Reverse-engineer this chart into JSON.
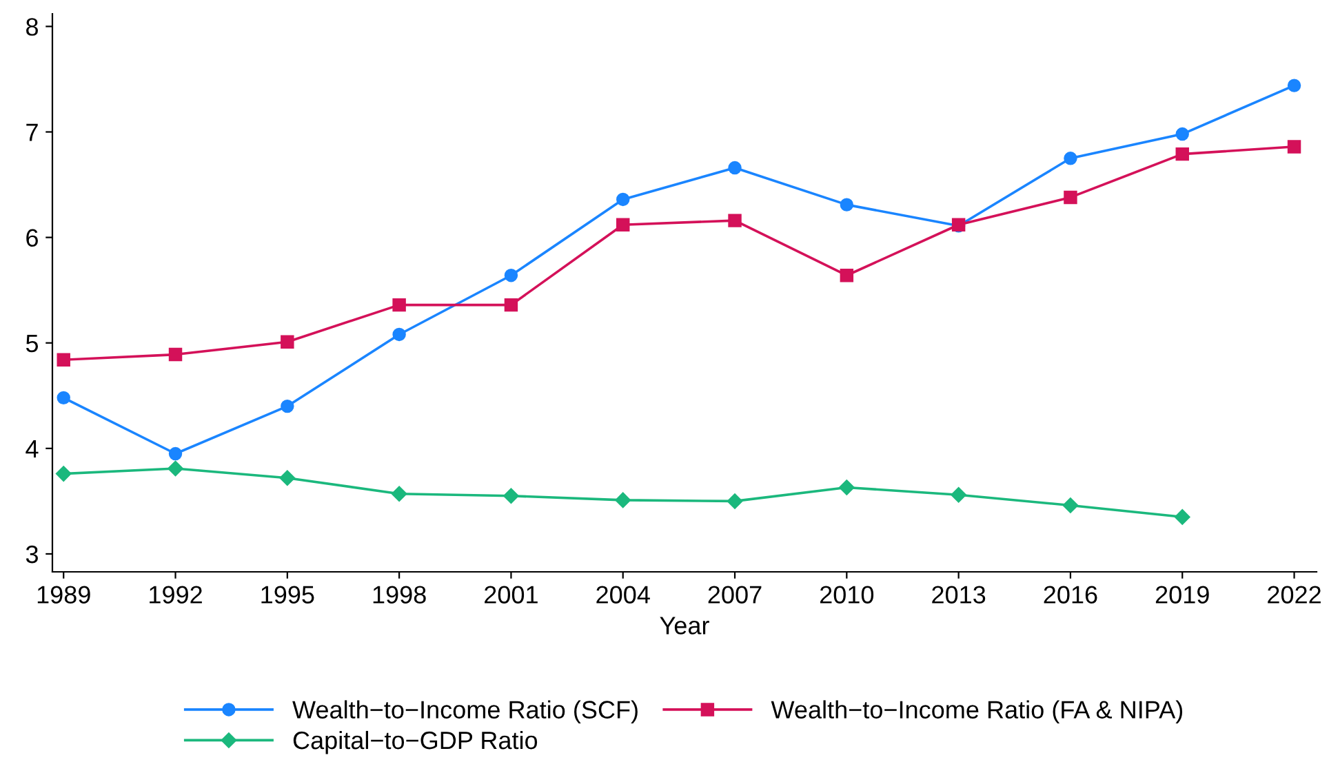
{
  "chart_data": {
    "type": "line",
    "xlabel": "Year",
    "x": [
      1989,
      1992,
      1995,
      1998,
      2001,
      2004,
      2007,
      2010,
      2013,
      2016,
      2019,
      2022
    ],
    "series": [
      {
        "name": "Wealth−to−Income Ratio (SCF)",
        "color": "#1a85ff",
        "marker": "circle",
        "values": [
          4.48,
          3.95,
          4.4,
          5.08,
          5.64,
          6.36,
          6.66,
          6.31,
          6.11,
          6.75,
          6.98,
          7.44
        ]
      },
      {
        "name": "Wealth−to−Income Ratio (FA & NIPA)",
        "color": "#d41159",
        "marker": "square",
        "values": [
          4.84,
          4.89,
          5.01,
          5.36,
          5.36,
          6.12,
          6.16,
          5.64,
          6.12,
          6.38,
          6.79,
          6.86
        ]
      },
      {
        "name": "Capital−to−GDP Ratio",
        "color": "#1bb87d",
        "marker": "diamond",
        "values": [
          3.76,
          3.81,
          3.72,
          3.57,
          3.55,
          3.51,
          3.5,
          3.63,
          3.56,
          3.46,
          3.35,
          null
        ]
      }
    ],
    "xlim": [
      1988.7,
      2022.6
    ],
    "xticks": [
      1989,
      1992,
      1995,
      1998,
      2001,
      2004,
      2007,
      2010,
      2013,
      2016,
      2019,
      2022
    ],
    "ylim": [
      2.83,
      8.12
    ],
    "yticks": [
      3,
      4,
      5,
      6,
      7,
      8
    ],
    "grid": false,
    "legend": "bottom",
    "line_style": "solid"
  }
}
